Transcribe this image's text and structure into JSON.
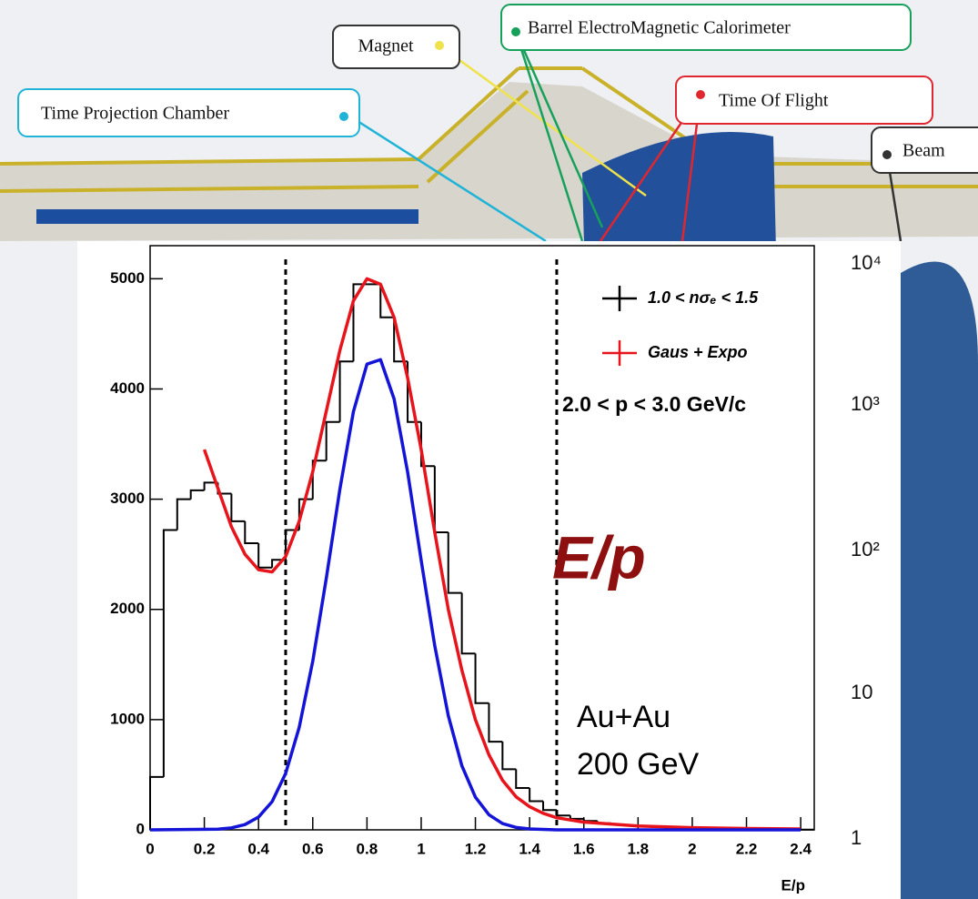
{
  "detector_labels": {
    "magnet": "Magnet",
    "bemc": "Barrel ElectroMagnetic Calorimeter",
    "tof": "Time Of Flight",
    "tpc": "Time Projection Chamber",
    "beam": "Beam"
  },
  "background_axis_labels": [
    "10⁴",
    "10³",
    "10²",
    "10",
    "1"
  ],
  "chart_data": {
    "type": "histogram",
    "xlabel": "E/p",
    "annotations": {
      "momentum": "2.0 < p < 3.0 GeV/c",
      "big_label": "E/p",
      "system": "Au+Au",
      "energy": "200 GeV"
    },
    "bins": [
      0,
      0.05,
      0.1,
      0.15,
      0.2,
      0.25,
      0.3,
      0.35,
      0.4,
      0.45,
      0.5,
      0.55,
      0.6,
      0.65,
      0.7,
      0.75,
      0.8,
      0.85,
      0.9,
      0.95,
      1.0,
      1.05,
      1.1,
      1.15,
      1.2,
      1.25,
      1.3,
      1.35,
      1.4,
      1.45,
      1.5,
      1.55,
      1.6,
      1.65,
      1.7,
      1.75,
      1.8,
      1.85,
      1.9,
      1.95,
      2.0,
      2.05,
      2.1,
      2.15,
      2.2,
      2.25,
      2.3,
      2.35,
      2.4,
      2.45
    ],
    "histogram": {
      "name": "1.0 < nσₑ < 1.5",
      "color": "#000000",
      "values": [
        480,
        2720,
        3000,
        3080,
        3150,
        3050,
        2800,
        2600,
        2380,
        2450,
        2720,
        3000,
        3350,
        3700,
        4250,
        4950,
        4950,
        4650,
        4250,
        3700,
        3300,
        2700,
        2150,
        1600,
        1150,
        800,
        550,
        380,
        260,
        180,
        130,
        100,
        80,
        60,
        50,
        40,
        30,
        25,
        20,
        15,
        12,
        10,
        8,
        6,
        5,
        4,
        3,
        2,
        2
      ]
    },
    "fits": [
      {
        "name": "Gaus + Expo",
        "color": "#e8141c",
        "x": [
          0.2,
          0.25,
          0.3,
          0.35,
          0.4,
          0.45,
          0.5,
          0.55,
          0.6,
          0.65,
          0.7,
          0.75,
          0.8,
          0.85,
          0.9,
          0.95,
          1.0,
          1.05,
          1.1,
          1.15,
          1.2,
          1.25,
          1.3,
          1.35,
          1.4,
          1.45,
          1.5,
          1.6,
          1.8,
          2.0,
          2.2,
          2.4
        ],
        "values": [
          3450,
          3100,
          2750,
          2500,
          2360,
          2340,
          2480,
          2800,
          3250,
          3800,
          4350,
          4800,
          5000,
          4950,
          4650,
          4100,
          3450,
          2700,
          2000,
          1450,
          1000,
          680,
          450,
          300,
          210,
          150,
          110,
          70,
          35,
          20,
          12,
          8
        ]
      },
      {
        "color": "#1414d8",
        "x": [
          0,
          0.25,
          0.3,
          0.35,
          0.4,
          0.45,
          0.5,
          0.55,
          0.6,
          0.65,
          0.7,
          0.75,
          0.8,
          0.85,
          0.9,
          0.95,
          1.0,
          1.05,
          1.1,
          1.15,
          1.2,
          1.25,
          1.3,
          1.35,
          1.4,
          1.5,
          2.4
        ],
        "values": [
          0,
          6,
          18,
          48,
          116,
          256,
          512,
          930,
          1530,
          2283,
          3090,
          3794,
          4225,
          4266,
          3910,
          3246,
          2445,
          1671,
          1036,
          582,
          297,
          137,
          57,
          22,
          8,
          0,
          0
        ]
      }
    ],
    "cut_lines": [
      0.5,
      1.5
    ],
    "xlim": [
      0,
      2.45
    ],
    "ylim": [
      0,
      5300
    ],
    "xticks": [
      0,
      0.2,
      0.4,
      0.6,
      0.8,
      1,
      1.2,
      1.4,
      1.6,
      1.8,
      2,
      2.2,
      2.4
    ],
    "yticks": [
      0,
      1000,
      2000,
      3000,
      4000,
      5000
    ]
  }
}
